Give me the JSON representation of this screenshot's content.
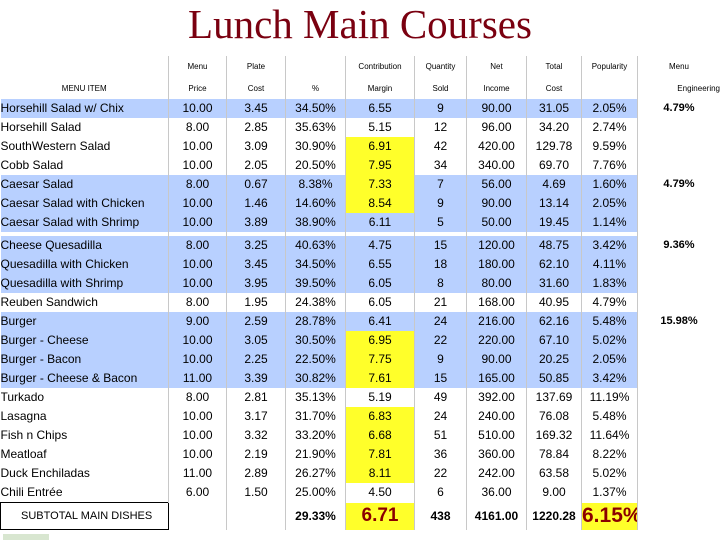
{
  "title": "Lunch Main Courses",
  "header": {
    "row1": [
      "",
      "Menu",
      "Plate",
      "",
      "Contribution",
      "Quantity",
      "Net",
      "Total",
      "Popularity",
      "Menu"
    ],
    "row2": [
      "MENU ITEM",
      "Price",
      "Cost",
      "%",
      "Margin",
      "Sold",
      "Income",
      "Cost",
      "",
      "Engineering"
    ]
  },
  "rows": [
    {
      "name": "Horsehill Salad w/ Chix",
      "price": "10.00",
      "cost": "3.45",
      "pct": "34.50%",
      "margin": "6.55",
      "sold": "9",
      "income": "90.00",
      "total": "31.05",
      "popularity": "2.05%",
      "eng": "4.79%",
      "hl": true,
      "yellow": false
    },
    {
      "name": "Horsehill Salad",
      "price": "8.00",
      "cost": "2.85",
      "pct": "35.63%",
      "margin": "5.15",
      "sold": "12",
      "income": "96.00",
      "total": "34.20",
      "popularity": "2.74%",
      "eng": "",
      "hl": false,
      "yellow": false
    },
    {
      "name": "SouthWestern Salad",
      "price": "10.00",
      "cost": "3.09",
      "pct": "30.90%",
      "margin": "6.91",
      "sold": "42",
      "income": "420.00",
      "total": "129.78",
      "popularity": "9.59%",
      "eng": "",
      "hl": false,
      "yellow": true
    },
    {
      "name": "Cobb Salad",
      "price": "10.00",
      "cost": "2.05",
      "pct": "20.50%",
      "margin": "7.95",
      "sold": "34",
      "income": "340.00",
      "total": "69.70",
      "popularity": "7.76%",
      "eng": "",
      "hl": false,
      "yellow": true
    },
    {
      "name": "Caesar Salad",
      "price": "8.00",
      "cost": "0.67",
      "pct": "8.38%",
      "margin": "7.33",
      "sold": "7",
      "income": "56.00",
      "total": "4.69",
      "popularity": "1.60%",
      "eng": "4.79%",
      "hl": true,
      "yellow": true
    },
    {
      "name": "Caesar Salad with Chicken",
      "price": "10.00",
      "cost": "1.46",
      "pct": "14.60%",
      "margin": "8.54",
      "sold": "9",
      "income": "90.00",
      "total": "13.14",
      "popularity": "2.05%",
      "eng": "",
      "hl": true,
      "yellow": true
    },
    {
      "name": "Caesar Salad with Shrimp",
      "price": "10.00",
      "cost": "3.89",
      "pct": "38.90%",
      "margin": "6.11",
      "sold": "5",
      "income": "50.00",
      "total": "19.45",
      "popularity": "1.14%",
      "eng": "",
      "hl": true,
      "yellow": false,
      "gap_after": true
    },
    {
      "name": "Cheese Quesadilla",
      "price": "8.00",
      "cost": "3.25",
      "pct": "40.63%",
      "margin": "4.75",
      "sold": "15",
      "income": "120.00",
      "total": "48.75",
      "popularity": "3.42%",
      "eng": "9.36%",
      "hl": true,
      "yellow": false
    },
    {
      "name": "Quesadilla with Chicken",
      "price": "10.00",
      "cost": "3.45",
      "pct": "34.50%",
      "margin": "6.55",
      "sold": "18",
      "income": "180.00",
      "total": "62.10",
      "popularity": "4.11%",
      "eng": "",
      "hl": true,
      "yellow": false
    },
    {
      "name": "Quesadilla with Shrimp",
      "price": "10.00",
      "cost": "3.95",
      "pct": "39.50%",
      "margin": "6.05",
      "sold": "8",
      "income": "80.00",
      "total": "31.60",
      "popularity": "1.83%",
      "eng": "",
      "hl": true,
      "yellow": false
    },
    {
      "name": "Reuben Sandwich",
      "price": "8.00",
      "cost": "1.95",
      "pct": "24.38%",
      "margin": "6.05",
      "sold": "21",
      "income": "168.00",
      "total": "40.95",
      "popularity": "4.79%",
      "eng": "",
      "hl": false,
      "yellow": false
    },
    {
      "name": "Burger",
      "price": "9.00",
      "cost": "2.59",
      "pct": "28.78%",
      "margin": "6.41",
      "sold": "24",
      "income": "216.00",
      "total": "62.16",
      "popularity": "5.48%",
      "eng": "15.98%",
      "hl": true,
      "yellow": false
    },
    {
      "name": "Burger - Cheese",
      "price": "10.00",
      "cost": "3.05",
      "pct": "30.50%",
      "margin": "6.95",
      "sold": "22",
      "income": "220.00",
      "total": "67.10",
      "popularity": "5.02%",
      "eng": "",
      "hl": true,
      "yellow": true
    },
    {
      "name": "Burger - Bacon",
      "price": "10.00",
      "cost": "2.25",
      "pct": "22.50%",
      "margin": "7.75",
      "sold": "9",
      "income": "90.00",
      "total": "20.25",
      "popularity": "2.05%",
      "eng": "",
      "hl": true,
      "yellow": true
    },
    {
      "name": "Burger - Cheese & Bacon",
      "price": "11.00",
      "cost": "3.39",
      "pct": "30.82%",
      "margin": "7.61",
      "sold": "15",
      "income": "165.00",
      "total": "50.85",
      "popularity": "3.42%",
      "eng": "",
      "hl": true,
      "yellow": true
    },
    {
      "name": "Turkado",
      "price": "8.00",
      "cost": "2.81",
      "pct": "35.13%",
      "margin": "5.19",
      "sold": "49",
      "income": "392.00",
      "total": "137.69",
      "popularity": "11.19%",
      "eng": "",
      "hl": false,
      "yellow": false
    },
    {
      "name": "Lasagna",
      "price": "10.00",
      "cost": "3.17",
      "pct": "31.70%",
      "margin": "6.83",
      "sold": "24",
      "income": "240.00",
      "total": "76.08",
      "popularity": "5.48%",
      "eng": "",
      "hl": false,
      "yellow": true
    },
    {
      "name": "Fish n Chips",
      "price": "10.00",
      "cost": "3.32",
      "pct": "33.20%",
      "margin": "6.68",
      "sold": "51",
      "income": "510.00",
      "total": "169.32",
      "popularity": "11.64%",
      "eng": "",
      "hl": false,
      "yellow": true
    },
    {
      "name": "Meatloaf",
      "price": "10.00",
      "cost": "2.19",
      "pct": "21.90%",
      "margin": "7.81",
      "sold": "36",
      "income": "360.00",
      "total": "78.84",
      "popularity": "8.22%",
      "eng": "",
      "hl": false,
      "yellow": true
    },
    {
      "name": "Duck Enchiladas",
      "price": "11.00",
      "cost": "2.89",
      "pct": "26.27%",
      "margin": "8.11",
      "sold": "22",
      "income": "242.00",
      "total": "63.58",
      "popularity": "5.02%",
      "eng": "",
      "hl": false,
      "yellow": true
    },
    {
      "name": "Chili Entrée",
      "price": "6.00",
      "cost": "1.50",
      "pct": "25.00%",
      "margin": "4.50",
      "sold": "6",
      "income": "36.00",
      "total": "9.00",
      "popularity": "1.37%",
      "eng": "",
      "hl": false,
      "yellow": false
    }
  ],
  "subtotal": {
    "label": "SUBTOTAL MAIN DISHES",
    "pct": "29.33%",
    "margin": "6.71",
    "sold": "438",
    "income": "4161.00",
    "total": "1220.28",
    "popularity": "6.15%"
  },
  "colors": {
    "title": "#7a0010",
    "row_highlight": "#b8d0ff",
    "margin_highlight": "#ffff2a",
    "subtotal_emphasis": "#8a0000"
  }
}
